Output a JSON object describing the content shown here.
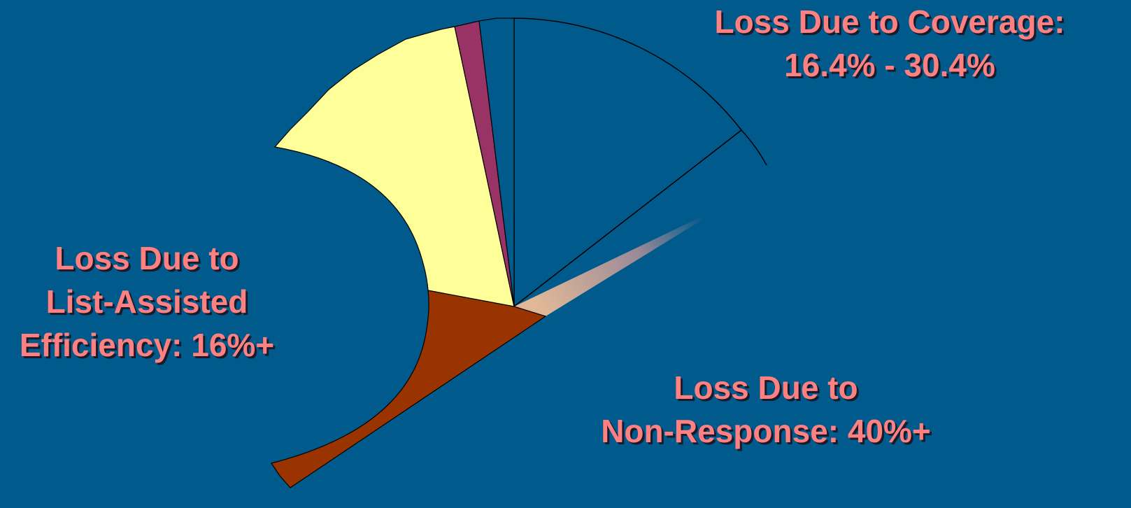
{
  "labels": {
    "coverage": [
      "Loss Due to Coverage:",
      "16.4% - 30.4%"
    ],
    "list_assisted": [
      "Loss Due to",
      "List-Assisted",
      "Efficiency: 16%+"
    ],
    "non_response": [
      "Loss Due to",
      "Non-Response: 40%+"
    ]
  }
}
